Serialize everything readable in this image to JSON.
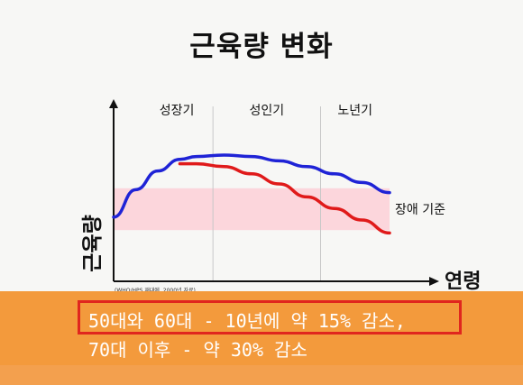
{
  "slide": {
    "title": "근육량 변화",
    "source_note": "(WHO/HPS 재대에, 2000년 자료)",
    "notes": [
      "50대와 60대 - 10년에 약 15% 감소,",
      "70대 이후 - 약 30% 감소"
    ],
    "colors": {
      "blue_curve": "#1f23d6",
      "red_curve": "#e01a1a",
      "threshold_band": "#fcd6dc",
      "orange_band": "#f39a3c",
      "note_border": "#e0261e"
    }
  },
  "chart_data": {
    "type": "line",
    "ylabel": "근육량",
    "xlabel": "연령",
    "x_range": [
      0,
      100
    ],
    "y_range": [
      0,
      100
    ],
    "phases": [
      {
        "label": "성장기",
        "start": 0,
        "end": 36
      },
      {
        "label": "성인기",
        "start": 36,
        "end": 75
      },
      {
        "label": "노년기",
        "start": 75,
        "end": 100
      }
    ],
    "threshold_band": {
      "label": "장애 기준",
      "low": 28,
      "high": 57
    },
    "series": [
      {
        "color": "#1f23d6",
        "x": [
          0,
          8,
          16,
          24,
          30,
          40,
          50,
          60,
          70,
          80,
          90,
          100
        ],
        "y": [
          37,
          56,
          69,
          77,
          79,
          80,
          79,
          76,
          72,
          67,
          61,
          54
        ]
      },
      {
        "color": "#e01a1a",
        "x": [
          24,
          30,
          40,
          50,
          60,
          70,
          80,
          90,
          100
        ],
        "y": [
          74,
          74,
          72,
          67,
          60,
          51,
          43,
          35,
          26
        ]
      }
    ]
  }
}
